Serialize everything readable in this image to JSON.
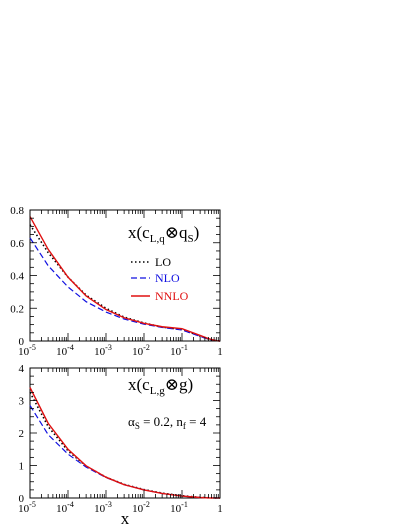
{
  "chart_data": [
    {
      "type": "line",
      "xscale": "log",
      "xlim": [
        1e-05,
        1
      ],
      "ylim": [
        0,
        0.8
      ],
      "xticks": [
        1e-05,
        0.0001,
        0.001,
        0.01,
        0.1,
        1
      ],
      "yticks": [
        0,
        0.2,
        0.4,
        0.6,
        0.8
      ],
      "ytick_labels": [
        "0",
        "0.2",
        "0.4",
        "0.6",
        "0.8"
      ],
      "xlabel": "",
      "ylabel": "",
      "label": "x(c_L,q ⊗ q_S)",
      "series": [
        {
          "name": "LO",
          "color": "#000000",
          "dash": "dotted",
          "x": [
            1e-05,
            3e-05,
            0.0001,
            0.0003,
            0.001,
            0.003,
            0.01,
            0.03,
            0.1,
            0.3,
            0.5,
            0.8,
            1
          ],
          "y": [
            0.71,
            0.54,
            0.39,
            0.28,
            0.2,
            0.146,
            0.11,
            0.085,
            0.07,
            0.03,
            0.012,
            0.002,
            0.0
          ]
        },
        {
          "name": "NLO",
          "color": "#1010e0",
          "dash": "dashed",
          "x": [
            1e-05,
            3e-05,
            0.0001,
            0.0003,
            0.001,
            0.003,
            0.01,
            0.03,
            0.1,
            0.3,
            0.5,
            0.8,
            1
          ],
          "y": [
            0.63,
            0.46,
            0.33,
            0.24,
            0.177,
            0.134,
            0.103,
            0.083,
            0.067,
            0.028,
            0.011,
            0.002,
            0.0
          ]
        },
        {
          "name": "NNLO",
          "color": "#e01010",
          "dash": "solid",
          "x": [
            1e-05,
            3e-05,
            0.0001,
            0.0003,
            0.001,
            0.003,
            0.01,
            0.03,
            0.1,
            0.3,
            0.5,
            0.8,
            1
          ],
          "y": [
            0.76,
            0.56,
            0.39,
            0.275,
            0.192,
            0.142,
            0.108,
            0.087,
            0.075,
            0.034,
            0.014,
            0.002,
            0.0
          ]
        }
      ]
    },
    {
      "type": "line",
      "xscale": "log",
      "xlim": [
        1e-05,
        1
      ],
      "ylim": [
        0,
        4
      ],
      "xticks": [
        1e-05,
        0.0001,
        0.001,
        0.01,
        0.1,
        1
      ],
      "yticks": [
        0,
        1,
        2,
        3,
        4
      ],
      "ytick_labels": [
        "0",
        "1",
        "2",
        "3",
        "4"
      ],
      "xlabel": "x",
      "ylabel": "",
      "label": "x(c_L,g ⊗ g)",
      "annotation": "α_S = 0.2, n_f = 4",
      "series": [
        {
          "name": "LO",
          "color": "#000000",
          "dash": "dotted",
          "x": [
            1e-05,
            3e-05,
            0.0001,
            0.0003,
            0.001,
            0.003,
            0.01,
            0.03,
            0.1,
            0.3,
            0.5,
            0.8,
            1
          ],
          "y": [
            3.25,
            2.2,
            1.45,
            0.98,
            0.64,
            0.42,
            0.26,
            0.15,
            0.07,
            0.02,
            0.006,
            0.0,
            0.0
          ]
        },
        {
          "name": "NLO",
          "color": "#1010e0",
          "dash": "dashed",
          "x": [
            1e-05,
            3e-05,
            0.0001,
            0.0003,
            0.001,
            0.003,
            0.01,
            0.03,
            0.1,
            0.3,
            0.5,
            0.8,
            1
          ],
          "y": [
            2.85,
            1.95,
            1.35,
            0.95,
            0.63,
            0.41,
            0.25,
            0.14,
            0.06,
            0.015,
            0.004,
            0.0,
            0.0
          ]
        },
        {
          "name": "NNLO",
          "color": "#e01010",
          "dash": "solid",
          "x": [
            1e-05,
            3e-05,
            0.0001,
            0.0003,
            0.001,
            0.003,
            0.01,
            0.03,
            0.1,
            0.3,
            0.5,
            0.8,
            1
          ],
          "y": [
            3.4,
            2.3,
            1.5,
            0.99,
            0.64,
            0.41,
            0.25,
            0.14,
            0.06,
            0.015,
            0.004,
            0.0,
            0.0
          ]
        }
      ]
    }
  ],
  "legend": {
    "placement": "right",
    "entries": [
      "LO",
      "NLO",
      "NNLO"
    ]
  },
  "x_tick_base": "10",
  "x_tick_exponents": [
    "-5",
    "-4",
    "-3",
    "-2",
    "-1"
  ],
  "x_tick_last": "1",
  "grid": false
}
